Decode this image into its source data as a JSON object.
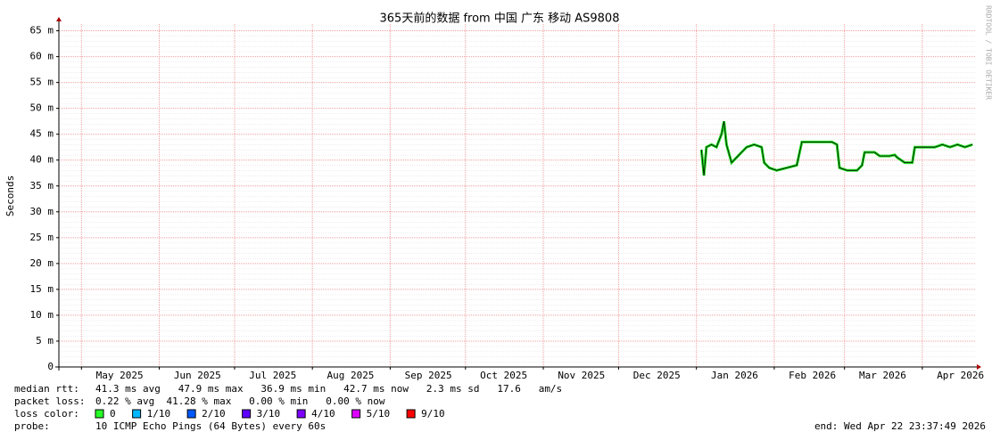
{
  "chart_data": {
    "type": "line",
    "title": "365天前的数据 from 中国 广东 移动 AS9808",
    "y_label": "Seconds",
    "watermark": "RRDTOOL / TOBI OETIKER",
    "xlim": [
      "2025-04-22",
      "2026-04-22"
    ],
    "xticks": [
      {
        "value": "2025-05",
        "label": "May 2025"
      },
      {
        "value": "2025-06",
        "label": "Jun 2025"
      },
      {
        "value": "2025-07",
        "label": "Jul 2025"
      },
      {
        "value": "2025-08",
        "label": "Aug 2025"
      },
      {
        "value": "2025-09",
        "label": "Sep 2025"
      },
      {
        "value": "2025-10",
        "label": "Oct 2025"
      },
      {
        "value": "2025-11",
        "label": "Nov 2025"
      },
      {
        "value": "2025-12",
        "label": "Dec 2025"
      },
      {
        "value": "2026-01",
        "label": "Jan 2026"
      },
      {
        "value": "2026-02",
        "label": "Feb 2026"
      },
      {
        "value": "2026-03",
        "label": "Mar 2026"
      },
      {
        "value": "2026-04",
        "label": "Apr 2026"
      }
    ],
    "ylim": [
      0,
      66.3
    ],
    "yticks": [
      0,
      {
        "value": 5,
        "label": "5 m"
      },
      {
        "value": 10,
        "label": "10 m"
      },
      {
        "value": 15,
        "label": "15 m"
      },
      {
        "value": 20,
        "label": "20 m"
      },
      {
        "value": 25,
        "label": "25 m"
      },
      {
        "value": 30,
        "label": "30 m"
      },
      {
        "value": 35,
        "label": "35 m"
      },
      {
        "value": 40,
        "label": "40 m"
      },
      {
        "value": 45,
        "label": "45 m"
      },
      {
        "value": 50,
        "label": "50 m"
      },
      {
        "value": 55,
        "label": "55 m"
      },
      {
        "value": 60,
        "label": "60 m"
      },
      {
        "value": 65,
        "label": "65 m"
      }
    ],
    "grid": true,
    "x": [
      "2026-01-03",
      "2026-01-04",
      "2026-01-05",
      "2026-01-07",
      "2026-01-09",
      "2026-01-11",
      "2026-01-12",
      "2026-01-13",
      "2026-01-15",
      "2026-01-17",
      "2026-01-19",
      "2026-01-21",
      "2026-01-24",
      "2026-01-27",
      "2026-01-28",
      "2026-01-30",
      "2026-02-02",
      "2026-02-06",
      "2026-02-10",
      "2026-02-12",
      "2026-02-16",
      "2026-02-20",
      "2026-02-24",
      "2026-02-26",
      "2026-02-27",
      "2026-03-02",
      "2026-03-06",
      "2026-03-08",
      "2026-03-09",
      "2026-03-13",
      "2026-03-15",
      "2026-03-19",
      "2026-03-21",
      "2026-03-22",
      "2026-03-25",
      "2026-03-28",
      "2026-03-29",
      "2026-04-02",
      "2026-04-06",
      "2026-04-09",
      "2026-04-12",
      "2026-04-15",
      "2026-04-18",
      "2026-04-21"
    ],
    "series": [
      {
        "name": "median rtt:",
        "color": "#22dd22",
        "values": [
          42.0,
          37.0,
          42.5,
          43.0,
          42.5,
          45.0,
          47.5,
          43.0,
          39.5,
          40.5,
          41.5,
          42.5,
          43.0,
          42.5,
          39.5,
          38.5,
          38.0,
          38.5,
          39.0,
          43.5,
          43.5,
          43.5,
          43.5,
          43.0,
          38.5,
          38.0,
          38.0,
          39.0,
          41.5,
          41.5,
          40.8,
          40.8,
          41.0,
          40.5,
          39.5,
          39.5,
          42.5,
          42.5,
          42.5,
          43.0,
          42.5,
          43.0,
          42.5,
          43.0
        ]
      }
    ],
    "median_stats": "41.3 ms avg   47.9 ms max   36.9 ms min   42.7 ms now   2.3 ms sd   17.6   am/s",
    "packet_loss_label": "packet loss:",
    "packet_loss": "0.22 % avg  41.28 % max   0.00 % min   0.00 % now",
    "loss_color_label": "loss color:",
    "loss_colors": [
      {
        "name": "0",
        "color": "#26ff26"
      },
      {
        "name": "1/10",
        "color": "#00b8ff"
      },
      {
        "name": "2/10",
        "color": "#0059ff"
      },
      {
        "name": "3/10",
        "color": "#5e00ff"
      },
      {
        "name": "4/10",
        "color": "#7e00ff"
      },
      {
        "name": "5/10",
        "color": "#dd00ff"
      },
      {
        "name": "9/10",
        "color": "#ff0000"
      }
    ],
    "probe_label": "probe:",
    "probe": "10 ICMP Echo Pings (64 Bytes) every 60s",
    "end": "end: Wed Apr 22 23:37:49 2026"
  }
}
